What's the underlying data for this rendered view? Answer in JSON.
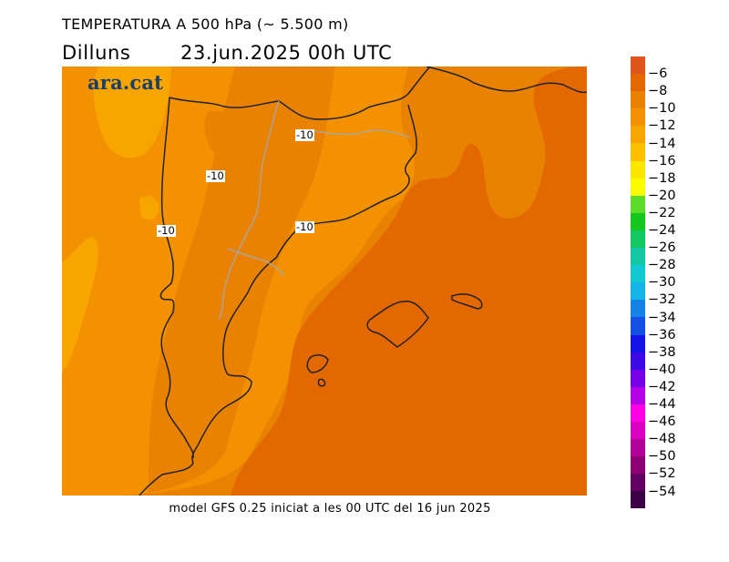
{
  "header": {
    "title": "TEMPERATURA A 500 hPa (~ 5.500 m)",
    "day": "Dilluns",
    "date": "23.jun.2025 00h UTC"
  },
  "brand": {
    "logo_text": "ara.cat"
  },
  "map": {
    "contour_labels": [
      "-10",
      "-10",
      "-10",
      "-10"
    ],
    "colors": {
      "minus6_minus8": "#e36800",
      "minus8_minus10": "#e88200",
      "minus10_minus12": "#f49100",
      "minus12_minus14": "#f9a500",
      "coast": "#222222",
      "borders": "#a8a8a8"
    }
  },
  "footer": {
    "caption": "model GFS 0.25 iniciat a les 00 UTC del 16 jun 2025"
  },
  "colorbar": {
    "labels": [
      "-6",
      "-8",
      "-10",
      "-12",
      "-14",
      "-16",
      "-18",
      "-20",
      "-22",
      "-24",
      "-26",
      "-28",
      "-30",
      "-32",
      "-34",
      "-36",
      "-38",
      "-40",
      "-42",
      "-44",
      "-46",
      "-48",
      "-50",
      "-52",
      "-54"
    ],
    "colors": [
      "#e0561a",
      "#e36800",
      "#e88200",
      "#f49100",
      "#f9a500",
      "#fcc000",
      "#fde600",
      "#fcfc00",
      "#5adc28",
      "#16c81e",
      "#14c864",
      "#14c8a5",
      "#14c8d2",
      "#14b4e6",
      "#1482e6",
      "#1450e6",
      "#1414e6",
      "#3c0ae6",
      "#7800e6",
      "#b400e6",
      "#ff00e6",
      "#dc00c3",
      "#b4009b",
      "#8c0073",
      "#640064",
      "#3c0046"
    ]
  }
}
